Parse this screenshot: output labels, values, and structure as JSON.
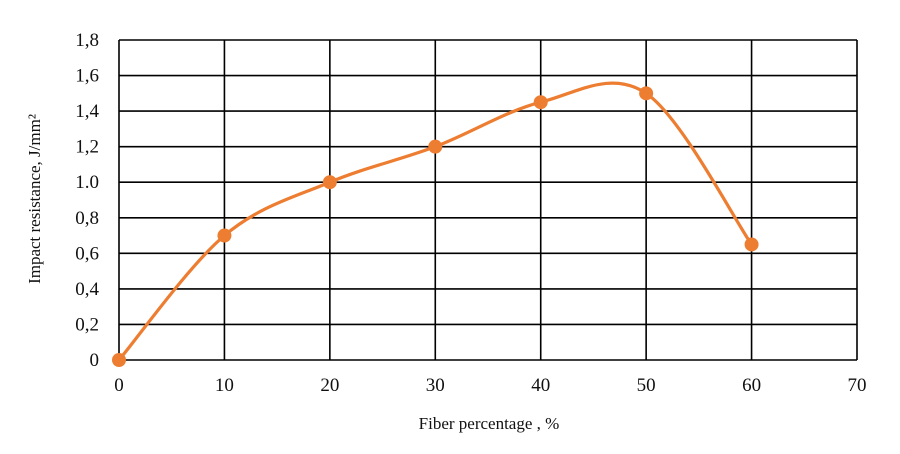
{
  "chart_data": {
    "type": "line",
    "title": "",
    "xlabel": "Fiber percentage , %",
    "ylabel": "Impact resistance, J/mm²",
    "xlim": [
      0,
      70
    ],
    "ylim": [
      0,
      1.8
    ],
    "grid": true,
    "smooth": true,
    "x_ticks": [
      0,
      10,
      20,
      30,
      40,
      50,
      60,
      70
    ],
    "x_tick_labels": [
      "0",
      "10",
      "20",
      "30",
      "40",
      "50",
      "60",
      "70"
    ],
    "y_ticks": [
      0,
      0.2,
      0.4,
      0.6,
      0.8,
      1.0,
      1.2,
      1.4,
      1.6,
      1.8
    ],
    "y_tick_labels": [
      "0",
      "0,2",
      "0,4",
      "0,6",
      "0,8",
      "1.0",
      "1,2",
      "1,4",
      "1,6",
      "1,8"
    ],
    "series": [
      {
        "color": "#ED7D31",
        "x": [
          0,
          10,
          20,
          30,
          40,
          50,
          60
        ],
        "y": [
          0,
          0.7,
          1.0,
          1.2,
          1.45,
          1.5,
          0.65
        ]
      }
    ]
  }
}
